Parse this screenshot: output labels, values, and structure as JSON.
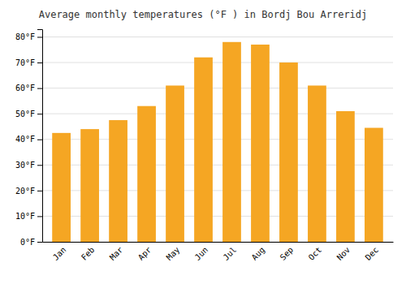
{
  "chart_data": {
    "type": "bar",
    "title": "Average monthly temperatures (°F ) in Bordj Bou Arreridj",
    "categories": [
      "Jan",
      "Feb",
      "Mar",
      "Apr",
      "May",
      "Jun",
      "Jul",
      "Aug",
      "Sep",
      "Oct",
      "Nov",
      "Dec"
    ],
    "values": [
      42.5,
      44.0,
      47.5,
      53.0,
      61.0,
      72.0,
      78.0,
      77.0,
      70.0,
      61.0,
      51.0,
      44.5
    ],
    "color": "#F5A623",
    "ylim": [
      0,
      83
    ],
    "yticks": [
      {
        "value": 0,
        "label": "0°F"
      },
      {
        "value": 10,
        "label": "10°F"
      },
      {
        "value": 20,
        "label": "20°F"
      },
      {
        "value": 30,
        "label": "30°F"
      },
      {
        "value": 40,
        "label": "40°F"
      },
      {
        "value": 50,
        "label": "50°F"
      },
      {
        "value": 60,
        "label": "60°F"
      },
      {
        "value": 70,
        "label": "70°F"
      },
      {
        "value": 80,
        "label": "80°F"
      }
    ],
    "grid": true
  }
}
